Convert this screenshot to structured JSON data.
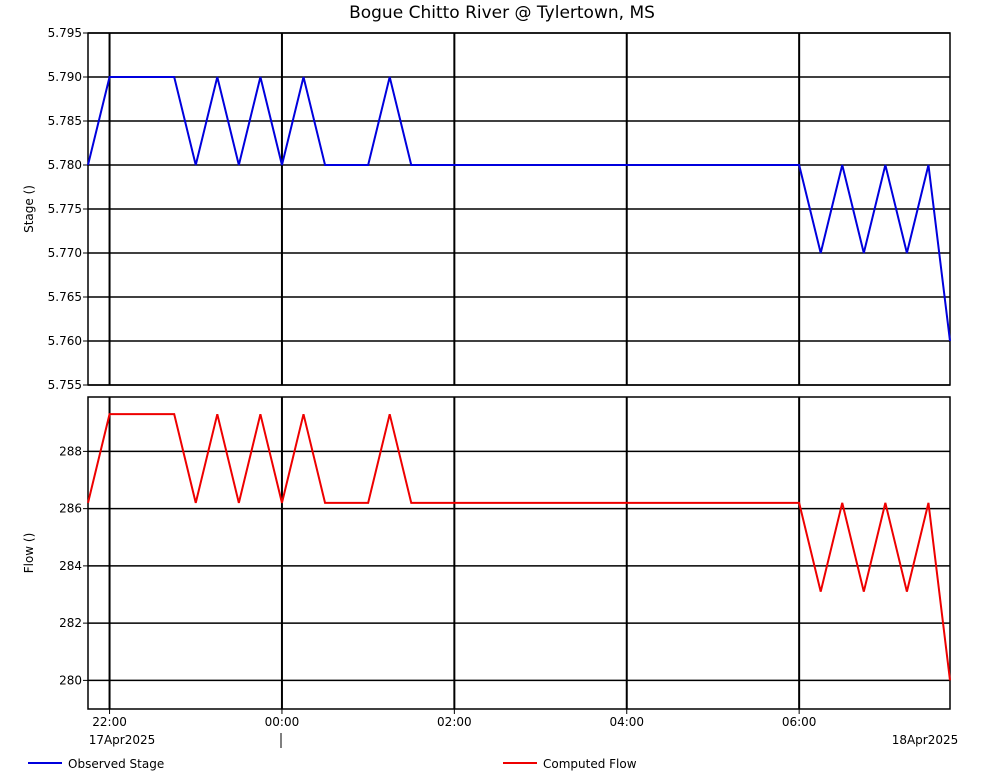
{
  "chart_data": {
    "type": "line",
    "title": "Bogue Chitto River @ Tylertown, MS",
    "time_range": [
      "2025-04-17T21:45",
      "2025-04-18T07:45"
    ],
    "x_ticks": [
      "2025-04-17T22:00",
      "2025-04-18T00:00",
      "2025-04-18T02:00",
      "2025-04-18T04:00",
      "2025-04-18T06:00"
    ],
    "x_tick_labels": [
      "22:00",
      "00:00",
      "02:00",
      "04:00",
      "06:00"
    ],
    "date_labels": [
      "17Apr2025",
      "18Apr2025"
    ],
    "x": [
      "2025-04-17T21:45",
      "2025-04-17T22:00",
      "2025-04-17T22:45",
      "2025-04-17T23:00",
      "2025-04-17T23:15",
      "2025-04-17T23:30",
      "2025-04-17T23:45",
      "2025-04-18T00:00",
      "2025-04-18T00:15",
      "2025-04-18T00:30",
      "2025-04-18T01:00",
      "2025-04-18T01:15",
      "2025-04-18T01:30",
      "2025-04-18T06:00",
      "2025-04-18T06:15",
      "2025-04-18T06:30",
      "2025-04-18T06:45",
      "2025-04-18T07:00",
      "2025-04-18T07:15",
      "2025-04-18T07:30",
      "2025-04-18T07:45"
    ],
    "grid": true,
    "panels": [
      {
        "ylabel": "Stage ()",
        "ylim": [
          5.755,
          5.795
        ],
        "y_ticks": [
          "5.795",
          "5.790",
          "5.785",
          "5.780",
          "5.775",
          "5.770",
          "5.765",
          "5.760",
          "5.755"
        ],
        "series": [
          {
            "name": "Observed Stage",
            "color": "#0000dd",
            "values": [
              5.78,
              5.79,
              5.79,
              5.78,
              5.79,
              5.78,
              5.79,
              5.78,
              5.79,
              5.78,
              5.78,
              5.79,
              5.78,
              5.78,
              5.77,
              5.78,
              5.77,
              5.78,
              5.77,
              5.78,
              5.76
            ]
          }
        ]
      },
      {
        "ylabel": "Flow ()",
        "ylim": [
          279,
          289.9
        ],
        "y_ticks": [
          "288",
          "286",
          "284",
          "282",
          "280"
        ],
        "series": [
          {
            "name": "Computed Flow",
            "color": "#ee0000",
            "values": [
              286.2,
              289.3,
              289.3,
              286.2,
              289.3,
              286.2,
              289.3,
              286.2,
              289.3,
              286.2,
              286.2,
              289.3,
              286.2,
              286.2,
              283.1,
              286.2,
              283.1,
              286.2,
              283.1,
              286.2,
              280.0
            ]
          }
        ]
      }
    ],
    "legend_position": "bottom"
  }
}
